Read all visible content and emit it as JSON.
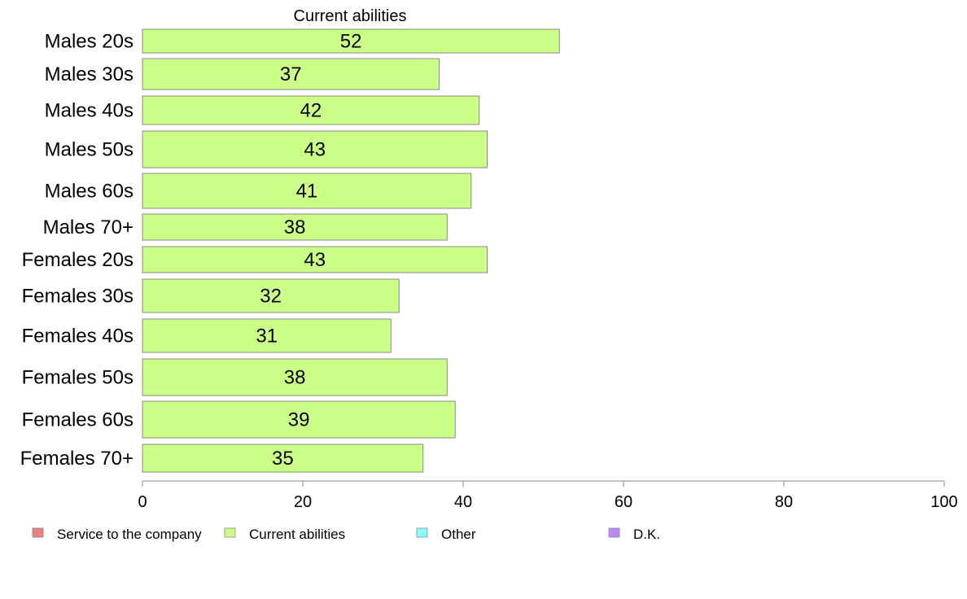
{
  "chart_data": {
    "type": "bar",
    "orientation": "horizontal",
    "title": "Current abilities",
    "xlabel": "",
    "ylabel": "",
    "xlim": [
      0,
      100
    ],
    "x_ticks": [
      "0",
      "20",
      "40",
      "60",
      "80",
      "100"
    ],
    "grid": false,
    "categories": [
      "Males 20s",
      "Males 30s",
      "Males 40s",
      "Males 50s",
      "Males 60s",
      "Males 70+",
      "Females 20s",
      "Females 30s",
      "Females 40s",
      "Females 50s",
      "Females 60s",
      "Females 70+"
    ],
    "series": [
      {
        "name": "Current abilities",
        "color": "#ccff88",
        "values": [
          52,
          37,
          42,
          43,
          41,
          38,
          43,
          32,
          31,
          38,
          39,
          35
        ],
        "labels": [
          "52",
          "37",
          "42",
          "43",
          "41",
          "38",
          "43",
          "32",
          "31",
          "38",
          "39",
          "35"
        ]
      }
    ],
    "legend": {
      "position": "bottom",
      "items": [
        {
          "label": "Service to the company",
          "color": "#f08080"
        },
        {
          "label": "Current abilities",
          "color": "#ccff88"
        },
        {
          "label": "Other",
          "color": "#88ffff"
        },
        {
          "label": "D.K.",
          "color": "#bb88ff"
        }
      ]
    }
  }
}
